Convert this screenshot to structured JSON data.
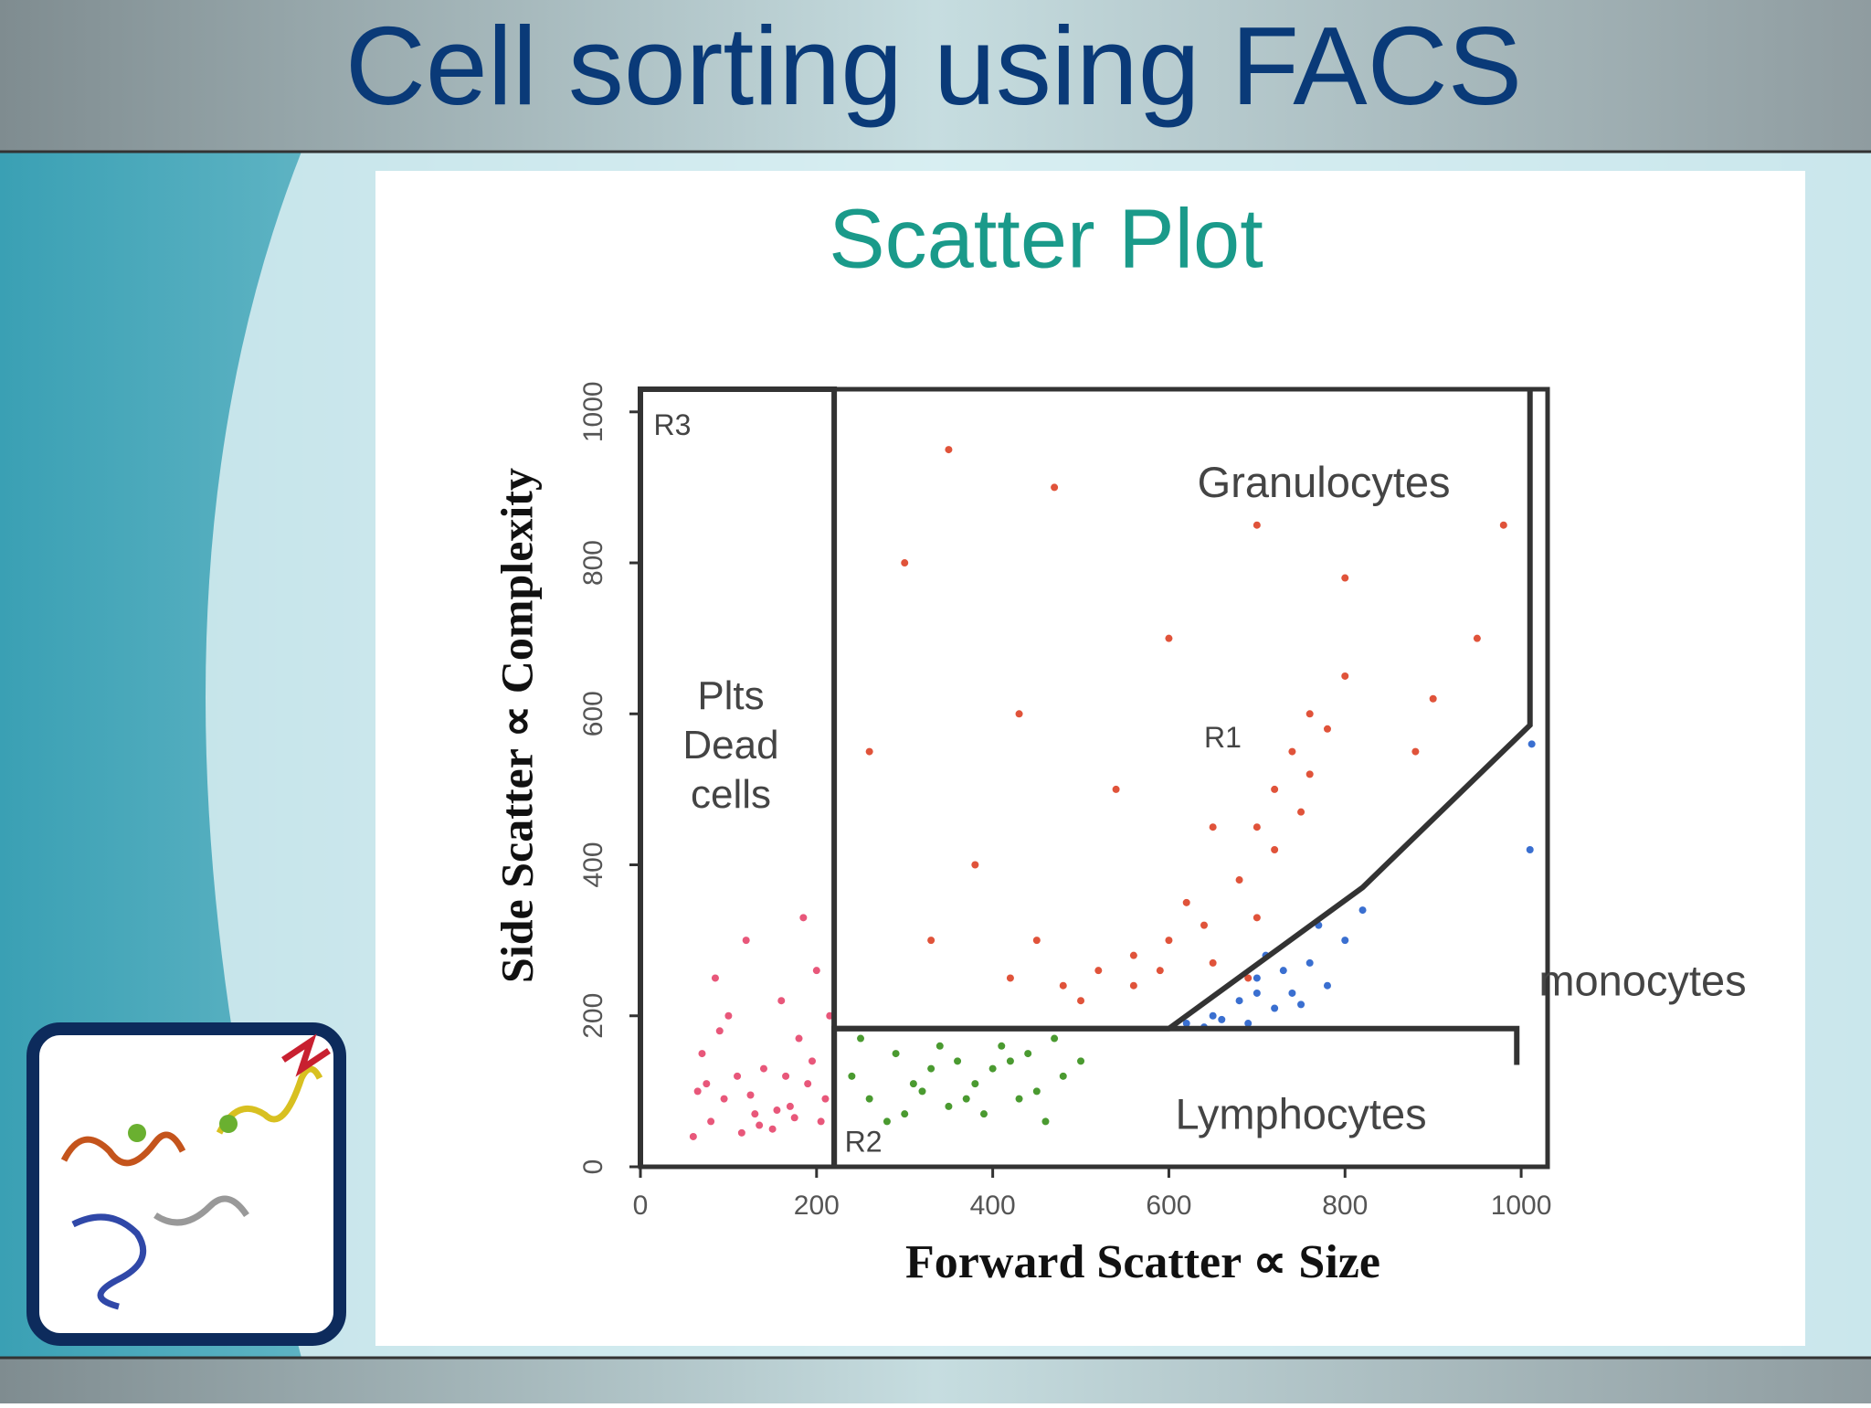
{
  "slide_title": "Cell sorting using FACS",
  "chart_data": {
    "type": "scatter",
    "title": "Scatter Plot",
    "x_label": "Forward Scatter ∝ Size",
    "y_label": "Side Scatter ∝ Complexity",
    "xlim": [
      0,
      1030
    ],
    "ylim": [
      0,
      1030
    ],
    "xticks": [
      0,
      200,
      400,
      600,
      800,
      1000
    ],
    "yticks": [
      0,
      200,
      400,
      600,
      800,
      1000
    ],
    "series": [
      {
        "name": "Plts Dead cells",
        "color": "#e8577a",
        "x": [
          60,
          80,
          95,
          110,
          130,
          150,
          170,
          190,
          205,
          70,
          100,
          140,
          180,
          210,
          85,
          120,
          160,
          200,
          65,
          115,
          155,
          195,
          90,
          135,
          175,
          75,
          125,
          165,
          185,
          215
        ],
        "values": [
          40,
          60,
          90,
          120,
          70,
          50,
          80,
          110,
          60,
          150,
          200,
          130,
          170,
          90,
          250,
          300,
          220,
          260,
          100,
          45,
          75,
          140,
          180,
          55,
          65,
          110,
          95,
          120,
          330,
          200
        ]
      },
      {
        "name": "Granulocytes",
        "color": "#e0533a",
        "x": [
          420,
          480,
          520,
          560,
          600,
          640,
          680,
          700,
          720,
          740,
          760,
          650,
          700,
          560,
          500,
          450,
          380,
          300,
          350,
          600,
          700,
          800,
          880,
          950,
          650,
          720,
          780,
          430,
          540,
          620,
          690,
          750,
          760,
          590,
          470,
          800,
          330,
          260,
          900,
          980
        ],
        "values": [
          250,
          240,
          260,
          280,
          300,
          320,
          380,
          450,
          500,
          550,
          600,
          270,
          330,
          240,
          220,
          300,
          400,
          800,
          950,
          700,
          850,
          650,
          550,
          700,
          450,
          420,
          580,
          600,
          500,
          350,
          250,
          470,
          520,
          260,
          900,
          780,
          300,
          550,
          620,
          850
        ]
      },
      {
        "name": "monocytes",
        "color": "#3a6fd0",
        "x": [
          620,
          650,
          680,
          700,
          720,
          740,
          760,
          780,
          800,
          690,
          710,
          730,
          660,
          750,
          770,
          640,
          700,
          820,
          1010,
          1012
        ],
        "values": [
          190,
          200,
          220,
          250,
          210,
          230,
          270,
          240,
          300,
          190,
          280,
          260,
          195,
          215,
          320,
          185,
          230,
          340,
          420,
          560
        ]
      },
      {
        "name": "Lymphocytes",
        "color": "#4a9a30",
        "x": [
          240,
          260,
          290,
          320,
          350,
          380,
          400,
          420,
          450,
          480,
          300,
          340,
          370,
          410,
          440,
          280,
          330,
          360,
          390,
          430,
          470,
          500,
          250,
          310,
          460
        ],
        "values": [
          120,
          90,
          150,
          100,
          80,
          110,
          130,
          140,
          100,
          120,
          70,
          160,
          90,
          160,
          150,
          60,
          130,
          140,
          70,
          90,
          170,
          140,
          170,
          110,
          60
        ]
      }
    ],
    "gates": [
      {
        "label": "R3",
        "points": [
          [
            0,
            0
          ],
          [
            0,
            1030
          ],
          [
            220,
            1030
          ],
          [
            220,
            0
          ]
        ]
      },
      {
        "label": "R1",
        "points": [
          [
            220,
            183
          ],
          [
            600,
            183
          ],
          [
            820,
            370
          ],
          [
            1010,
            585
          ],
          [
            1010,
            1030
          ]
        ]
      },
      {
        "label": "R2",
        "points": [
          [
            220,
            0
          ],
          [
            220,
            183
          ],
          [
            995,
            183
          ],
          [
            995,
            135
          ]
        ]
      }
    ]
  }
}
